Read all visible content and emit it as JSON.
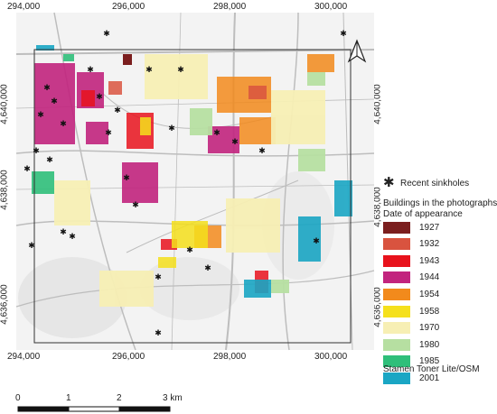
{
  "map": {
    "x_ticks": [
      "294,000",
      "296,000",
      "298,000",
      "300,000"
    ],
    "y_ticks": [
      "4,640,000",
      "4,638,000",
      "4,636,000"
    ],
    "north_arrow": "north-arrow"
  },
  "legend": {
    "sinkholes_label": "Recent sinkholes",
    "sinkhole_symbol": "✱",
    "buildings_title_1": "Buildings in the photographs",
    "buildings_title_2": "Date of appearance",
    "items": [
      {
        "label": "1927",
        "color": "#7b1e1e"
      },
      {
        "label": "1932",
        "color": "#d9533f"
      },
      {
        "label": "1943",
        "color": "#e8121c"
      },
      {
        "label": "1944",
        "color": "#c2247e"
      },
      {
        "label": "1954",
        "color": "#f28a1c"
      },
      {
        "label": "1958",
        "color": "#f5e01c"
      },
      {
        "label": "1970",
        "color": "#f7efb4"
      },
      {
        "label": "1980",
        "color": "#b6dfa1"
      },
      {
        "label": "1985",
        "color": "#2fbf7a"
      },
      {
        "label": "2001",
        "color": "#1aa6c4"
      }
    ],
    "basemap_credit": "Stamen Toner Lite/OSM"
  },
  "scale_bar": {
    "labels": [
      "0",
      "1",
      "2",
      "3 km"
    ]
  }
}
